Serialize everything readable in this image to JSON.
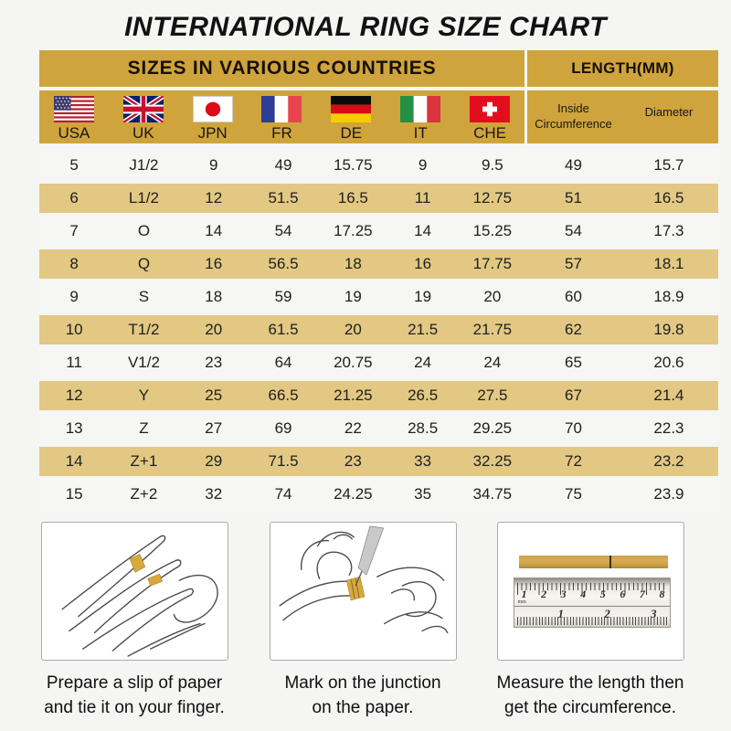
{
  "chart_data": {
    "type": "table",
    "title": "INTERNATIONAL RING SIZE CHART",
    "column_groups": [
      {
        "label": "SIZES IN VARIOUS COUNTRIES",
        "span": 7
      },
      {
        "label": "LENGTH(MM)",
        "span": 2
      }
    ],
    "columns": [
      {
        "label": "USA",
        "icon": "usa-flag-icon"
      },
      {
        "label": "UK",
        "icon": "uk-flag-icon"
      },
      {
        "label": "JPN",
        "icon": "japan-flag-icon"
      },
      {
        "label": "FR",
        "icon": "france-flag-icon"
      },
      {
        "label": "DE",
        "icon": "germany-flag-icon"
      },
      {
        "label": "IT",
        "icon": "italy-flag-icon"
      },
      {
        "label": "CHE",
        "icon": "switzerland-flag-icon"
      },
      {
        "label": "Inside Circumference"
      },
      {
        "label": "Diameter"
      }
    ],
    "rows": [
      [
        "5",
        "J1/2",
        "9",
        "49",
        "15.75",
        "9",
        "9.5",
        "49",
        "15.7"
      ],
      [
        "6",
        "L1/2",
        "12",
        "51.5",
        "16.5",
        "11",
        "12.75",
        "51",
        "16.5"
      ],
      [
        "7",
        "O",
        "14",
        "54",
        "17.25",
        "14",
        "15.25",
        "54",
        "17.3"
      ],
      [
        "8",
        "Q",
        "16",
        "56.5",
        "18",
        "16",
        "17.75",
        "57",
        "18.1"
      ],
      [
        "9",
        "S",
        "18",
        "59",
        "19",
        "19",
        "20",
        "60",
        "18.9"
      ],
      [
        "10",
        "T1/2",
        "20",
        "61.5",
        "20",
        "21.5",
        "21.75",
        "62",
        "19.8"
      ],
      [
        "11",
        "V1/2",
        "23",
        "64",
        "20.75",
        "24",
        "24",
        "65",
        "20.6"
      ],
      [
        "12",
        "Y",
        "25",
        "66.5",
        "21.25",
        "26.5",
        "27.5",
        "67",
        "21.4"
      ],
      [
        "13",
        "Z",
        "27",
        "69",
        "22",
        "28.5",
        "29.25",
        "70",
        "22.3"
      ],
      [
        "14",
        "Z+1",
        "29",
        "71.5",
        "23",
        "33",
        "32.25",
        "72",
        "23.2"
      ],
      [
        "15",
        "Z+2",
        "32",
        "74",
        "24.25",
        "35",
        "34.75",
        "75",
        "23.9"
      ]
    ]
  },
  "instructions": [
    {
      "illustration": "hand-with-paper-strip-illustration",
      "lines": [
        "Prepare a slip of paper",
        "and tie it on your finger."
      ]
    },
    {
      "illustration": "mark-junction-with-pen-illustration",
      "lines": [
        "Mark on the junction",
        "on the paper."
      ]
    },
    {
      "illustration": "ruler-measurement-illustration",
      "lines": [
        "Measure the length then",
        "get the circumference."
      ]
    }
  ],
  "ruler": {
    "unit_label": "mm",
    "top_scale": [
      "1",
      "2",
      "3",
      "4",
      "5",
      "6",
      "7",
      "8"
    ],
    "bottom_scale": [
      "1",
      "2",
      "3"
    ]
  },
  "colors": {
    "header_gold": "#CFA43C",
    "row_tan": "#E2C882",
    "row_light": "#F6F6F4",
    "background": "#F5F5F4",
    "paper_strip_gold": "#D7A93E",
    "text": "#1C1C1C"
  }
}
